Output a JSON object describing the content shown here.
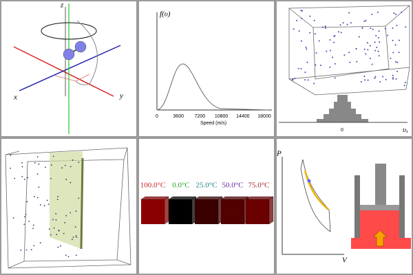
{
  "panels": {
    "molecule": {
      "z": "z",
      "x": "x",
      "y": "y"
    },
    "speed_distribution": {
      "y_label": "f(υ)",
      "x_label": "Speed (m/s)",
      "x_ticks": [
        "0",
        "3600",
        "7200",
        "10800",
        "14400",
        "18000"
      ]
    },
    "velocity_histogram": {
      "zero": "0",
      "axis": {
        "main": "υ",
        "sub": "x"
      }
    },
    "temperatures": {
      "labels": [
        "100.0°C",
        "0.0°C",
        "25.0°C",
        "50.0°C",
        "75.0°C"
      ]
    },
    "pv_diagram": {
      "p": "P",
      "v": "V"
    }
  }
}
